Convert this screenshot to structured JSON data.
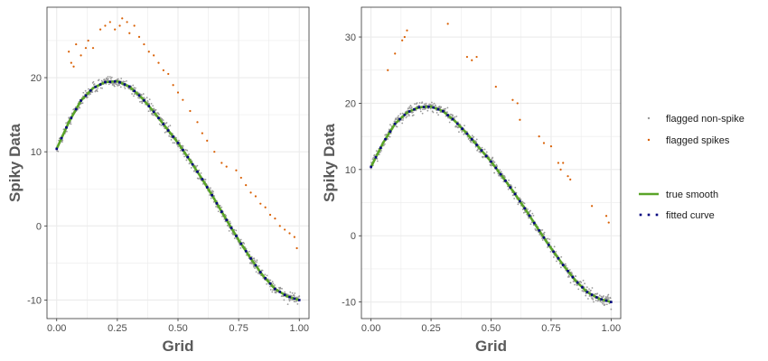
{
  "chart_data": [
    {
      "type": "scatter",
      "panel": "left",
      "xlabel": "Grid",
      "ylabel": "Spiky Data",
      "xlim": [
        -0.04,
        1.04
      ],
      "ylim": [
        -12.5,
        29.5
      ],
      "x_ticks": [
        0.0,
        0.25,
        0.5,
        0.75,
        1.0
      ],
      "x_tick_labels": [
        "0.00",
        "0.25",
        "0.50",
        "0.75",
        "1.00"
      ],
      "y_ticks": [
        -10,
        0,
        10,
        20
      ],
      "y_tick_labels": [
        "-10",
        "0",
        "10",
        "20"
      ],
      "grid": true,
      "nonspike_noise": 0.7,
      "spikes": [
        [
          0.05,
          23.5
        ],
        [
          0.06,
          22.0
        ],
        [
          0.07,
          21.5
        ],
        [
          0.08,
          24.5
        ],
        [
          0.1,
          23.0
        ],
        [
          0.12,
          24.0
        ],
        [
          0.13,
          25.0
        ],
        [
          0.15,
          24.0
        ],
        [
          0.18,
          26.5
        ],
        [
          0.2,
          27.0
        ],
        [
          0.22,
          27.5
        ],
        [
          0.24,
          26.5
        ],
        [
          0.26,
          27.0
        ],
        [
          0.27,
          28.0
        ],
        [
          0.29,
          27.5
        ],
        [
          0.3,
          26.0
        ],
        [
          0.32,
          27.0
        ],
        [
          0.34,
          25.5
        ],
        [
          0.36,
          24.5
        ],
        [
          0.38,
          23.5
        ],
        [
          0.4,
          23.0
        ],
        [
          0.42,
          22.0
        ],
        [
          0.44,
          21.0
        ],
        [
          0.46,
          20.5
        ],
        [
          0.48,
          19.0
        ],
        [
          0.5,
          18.0
        ],
        [
          0.52,
          17.0
        ],
        [
          0.55,
          15.5
        ],
        [
          0.58,
          14.0
        ],
        [
          0.6,
          12.5
        ],
        [
          0.62,
          11.5
        ],
        [
          0.65,
          10.0
        ],
        [
          0.68,
          8.5
        ],
        [
          0.7,
          8.0
        ],
        [
          0.74,
          7.5
        ],
        [
          0.76,
          6.5
        ],
        [
          0.78,
          5.5
        ],
        [
          0.8,
          4.5
        ],
        [
          0.82,
          4.0
        ],
        [
          0.84,
          3.0
        ],
        [
          0.86,
          2.5
        ],
        [
          0.88,
          1.5
        ],
        [
          0.9,
          1.0
        ],
        [
          0.92,
          0.0
        ],
        [
          0.94,
          -0.5
        ],
        [
          0.96,
          -1.0
        ],
        [
          0.98,
          -1.5
        ],
        [
          0.99,
          -3.0
        ]
      ]
    },
    {
      "type": "scatter",
      "panel": "right",
      "xlabel": "Grid",
      "ylabel": "Spiky Data",
      "xlim": [
        -0.04,
        1.04
      ],
      "ylim": [
        -12.5,
        34.5
      ],
      "x_ticks": [
        0.0,
        0.25,
        0.5,
        0.75,
        1.0
      ],
      "x_tick_labels": [
        "0.00",
        "0.25",
        "0.50",
        "0.75",
        "1.00"
      ],
      "y_ticks": [
        -10,
        0,
        10,
        20,
        30
      ],
      "y_tick_labels": [
        "-10",
        "0",
        "10",
        "20",
        "30"
      ],
      "grid": true,
      "nonspike_noise": 0.8,
      "spikes": [
        [
          0.07,
          25.0
        ],
        [
          0.1,
          27.5
        ],
        [
          0.13,
          29.5
        ],
        [
          0.14,
          30.0
        ],
        [
          0.15,
          31.0
        ],
        [
          0.32,
          32.0
        ],
        [
          0.4,
          27.0
        ],
        [
          0.42,
          26.5
        ],
        [
          0.44,
          27.0
        ],
        [
          0.52,
          22.5
        ],
        [
          0.59,
          20.5
        ],
        [
          0.61,
          20.0
        ],
        [
          0.62,
          17.5
        ],
        [
          0.7,
          15.0
        ],
        [
          0.72,
          14.0
        ],
        [
          0.75,
          13.5
        ],
        [
          0.78,
          11.0
        ],
        [
          0.79,
          10.0
        ],
        [
          0.8,
          11.0
        ],
        [
          0.82,
          9.0
        ],
        [
          0.83,
          8.5
        ],
        [
          0.92,
          4.5
        ],
        [
          0.98,
          3.0
        ],
        [
          0.99,
          2.0
        ]
      ]
    }
  ],
  "curve": {
    "description": "true smooth",
    "x": [
      0.0,
      0.05,
      0.1,
      0.15,
      0.2,
      0.25,
      0.3,
      0.35,
      0.4,
      0.45,
      0.5,
      0.55,
      0.6,
      0.65,
      0.7,
      0.75,
      0.8,
      0.85,
      0.9,
      0.95,
      1.0
    ],
    "y": [
      10.4,
      14.0,
      16.9,
      18.6,
      19.4,
      19.5,
      18.8,
      17.3,
      15.4,
      13.3,
      11.2,
      8.8,
      6.3,
      3.6,
      0.8,
      -1.9,
      -4.4,
      -6.7,
      -8.5,
      -9.5,
      -10.0
    ]
  },
  "legend": {
    "items": [
      {
        "label": "flagged non-spike",
        "kind": "point",
        "color": "#999999"
      },
      {
        "label": "flagged spikes",
        "kind": "point",
        "color": "#d95f02"
      },
      {
        "label": "true smooth",
        "kind": "line",
        "color": "#5aa428"
      },
      {
        "label": "fitted curve",
        "kind": "dots",
        "color": "#000080"
      }
    ]
  },
  "colors": {
    "nonspike": "#999999",
    "spike": "#d95f02",
    "true_smooth": "#5aa428",
    "fitted": "#000080",
    "grid": "#ebebeb",
    "border": "#333333"
  }
}
